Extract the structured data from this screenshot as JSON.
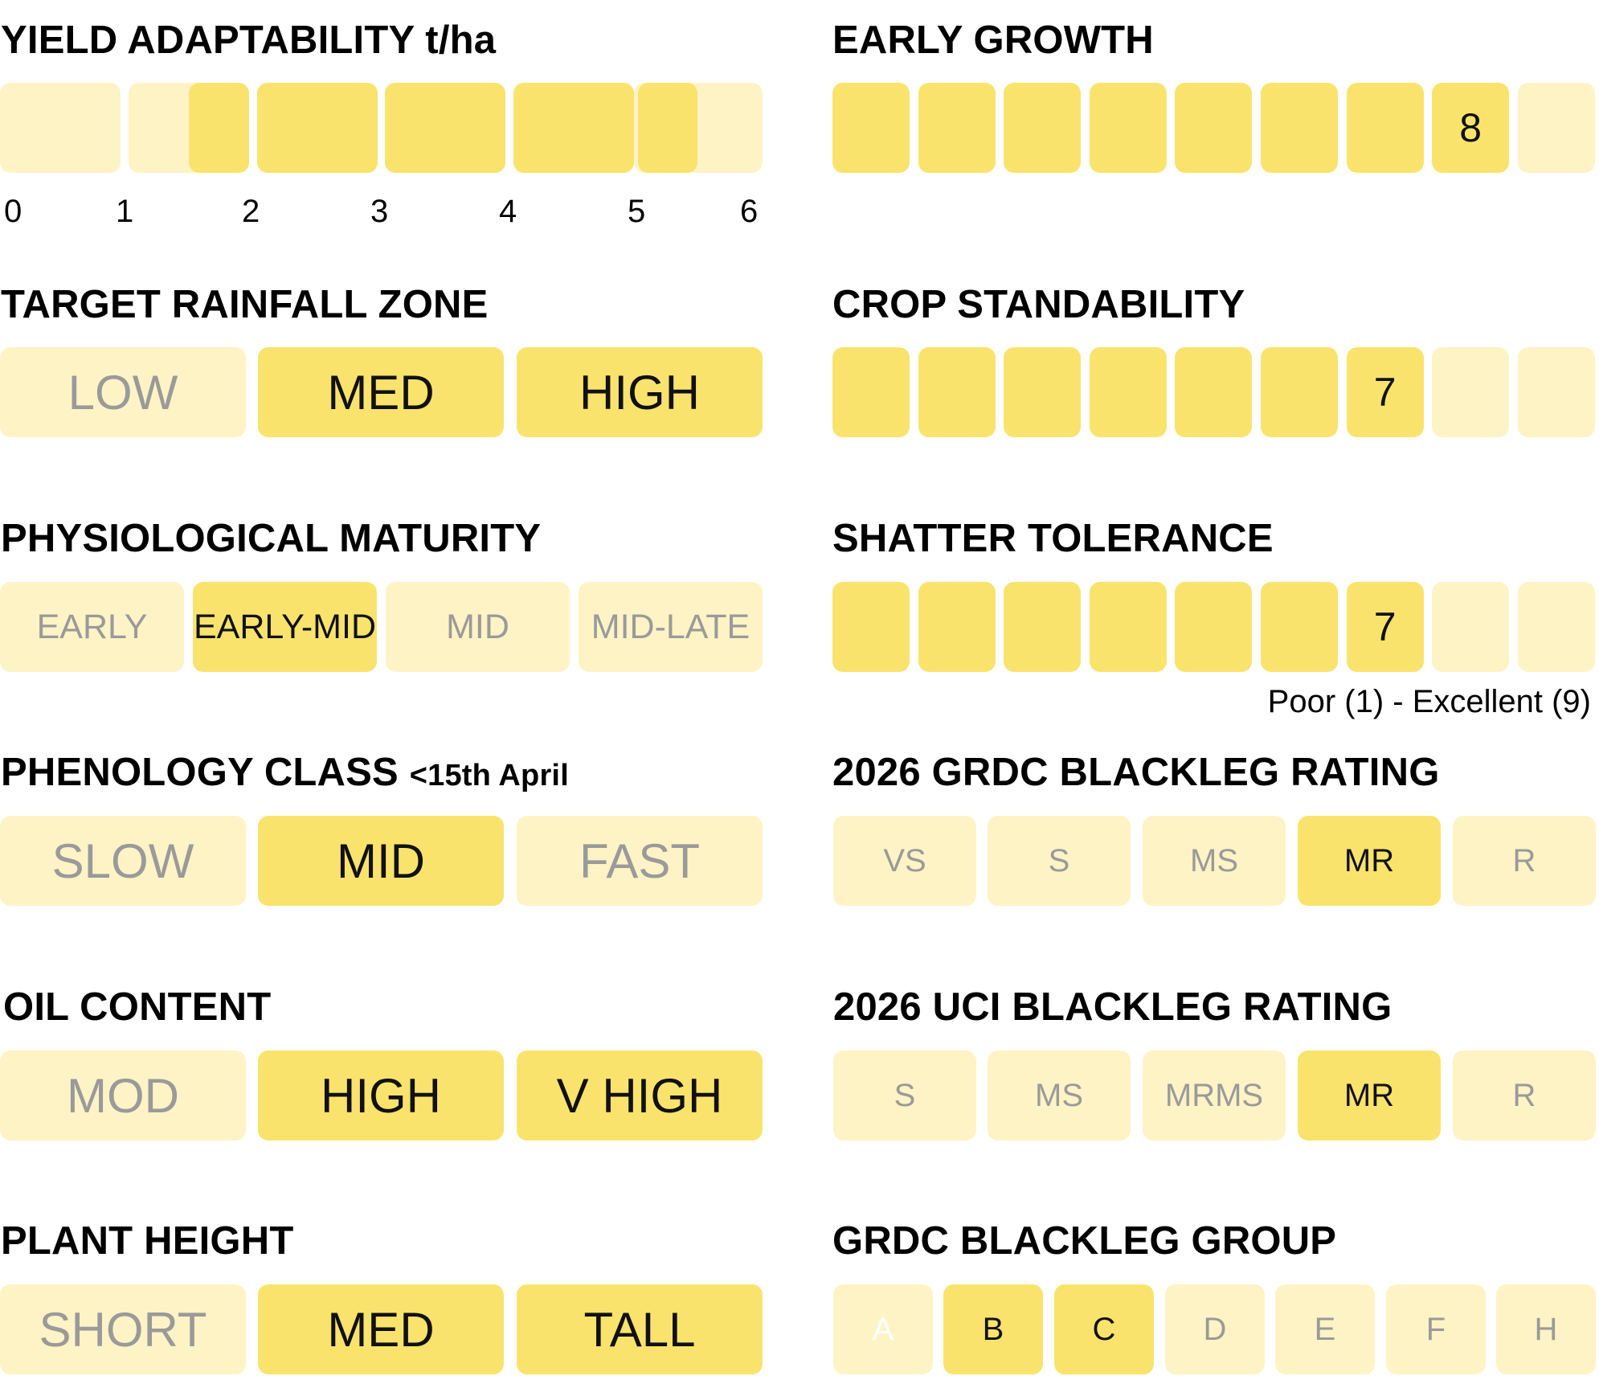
{
  "colors": {
    "selected": "#f9e36c",
    "unselected": "#fef3c5",
    "unselected_text": "#9a9a9a"
  },
  "yield": {
    "title": "YIELD ADAPTABILITY t/ha",
    "ticks": [
      "0",
      "1",
      "2",
      "3",
      "4",
      "5",
      "6"
    ],
    "range_t_ha": [
      1.5,
      5.5
    ]
  },
  "rainfall": {
    "title": "TARGET RAINFALL ZONE",
    "options": [
      "LOW",
      "MED",
      "HIGH"
    ],
    "selected": [
      "MED",
      "HIGH"
    ]
  },
  "maturity": {
    "title": "PHYSIOLOGICAL MATURITY",
    "options": [
      "EARLY",
      "EARLY-MID",
      "MID",
      "MID-LATE"
    ],
    "selected": [
      "EARLY-MID"
    ]
  },
  "phenology": {
    "title": "PHENOLOGY CLASS",
    "title_suffix": "<15th April",
    "options": [
      "SLOW",
      "MID",
      "FAST"
    ],
    "selected": [
      "MID"
    ]
  },
  "oil": {
    "title": "OIL CONTENT",
    "options": [
      "MOD",
      "HIGH",
      "V HIGH"
    ],
    "selected": [
      "HIGH",
      "V HIGH"
    ]
  },
  "height": {
    "title": "PLANT HEIGHT",
    "options": [
      "SHORT",
      "MED",
      "TALL"
    ],
    "selected": [
      "MED",
      "TALL"
    ]
  },
  "early_growth": {
    "title": "EARLY GROWTH",
    "value": 8,
    "max": 9,
    "label": "8"
  },
  "standability": {
    "title": "CROP STANDABILITY",
    "value": 7,
    "max": 9,
    "label": "7"
  },
  "shatter": {
    "title": "SHATTER TOLERANCE",
    "value": 7,
    "max": 9,
    "label": "7",
    "scale_note": "Poor (1) - Excellent (9)"
  },
  "grdc_rating": {
    "title": "2026 GRDC BLACKLEG RATING",
    "options": [
      "VS",
      "S",
      "MS",
      "MR",
      "R"
    ],
    "selected": [
      "MR"
    ]
  },
  "uci_rating": {
    "title": "2026 UCI BLACKLEG RATING",
    "options": [
      "S",
      "MS",
      "MRMS",
      "MR",
      "R"
    ],
    "selected": [
      "MR"
    ]
  },
  "blackleg_group": {
    "title": "GRDC BLACKLEG GROUP",
    "options": [
      "A",
      "B",
      "C",
      "D",
      "E",
      "F",
      "H"
    ],
    "selected": [
      "B",
      "C"
    ]
  }
}
